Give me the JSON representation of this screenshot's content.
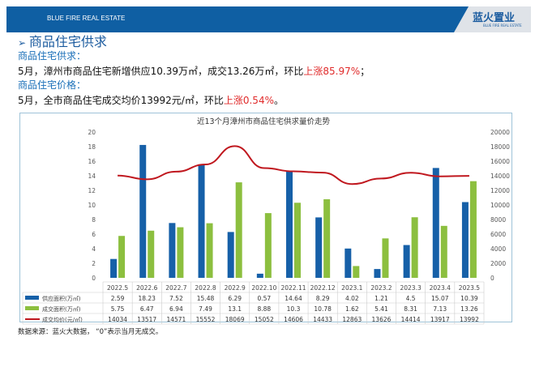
{
  "header": {
    "brand": "BLUE FIRE REAL ESTATE",
    "logo": "蓝火置业",
    "logo_sub": "BLUE FIRE REAL ESTATE"
  },
  "section_title": "商品住宅供求",
  "supply_label": "商品住宅供求：",
  "supply_text": "5月，漳州市商品住宅新增供应10.39万㎡，成交13.26万㎡，环比",
  "supply_change": "上涨85.97%",
  "supply_end": "；",
  "price_label": "商品住宅价格：",
  "price_text": "5月，全市商品住宅成交均价13992元/㎡，环比",
  "price_change": "上涨0.54%",
  "price_end": "。",
  "source": "数据来源：蓝火大数据， “0”表示当月无成交。",
  "colors": {
    "supply": "#1660a8",
    "deal": "#8cbf3f",
    "price": "#c0181f",
    "header": "#0f5fa3"
  },
  "chart_data": {
    "type": "bar+line",
    "title": "近13个月漳州市商品住宅供求量价走势",
    "categories": [
      "2022.5",
      "2022.6",
      "2022.7",
      "2022.8",
      "2022.9",
      "2022.10",
      "2022.11",
      "2022.12",
      "2023.1",
      "2023.2",
      "2023.3",
      "2023.4",
      "2023.5"
    ],
    "ylim_left": [
      0,
      20
    ],
    "yticks_left": [
      0,
      2,
      4,
      6,
      8,
      10,
      12,
      14,
      16,
      18,
      20
    ],
    "ylim_right": [
      0,
      20000
    ],
    "yticks_right": [
      0,
      2000,
      4000,
      6000,
      8000,
      10000,
      12000,
      14000,
      16000,
      18000,
      20000
    ],
    "grid": false,
    "legend": "table-below",
    "series": [
      {
        "name": "供应面积(万㎡)",
        "type": "bar",
        "axis": "left",
        "values": [
          2.59,
          18.23,
          7.52,
          15.48,
          6.29,
          0.57,
          14.64,
          8.29,
          4.02,
          1.21,
          4.5,
          15.07,
          10.39
        ]
      },
      {
        "name": "成交面积(万㎡)",
        "type": "bar",
        "axis": "left",
        "values": [
          5.75,
          6.47,
          6.94,
          7.49,
          13.1,
          8.88,
          10.3,
          10.78,
          1.62,
          5.41,
          8.31,
          7.13,
          13.26
        ]
      },
      {
        "name": "成交均价(元/㎡)",
        "type": "line",
        "axis": "right",
        "values": [
          14034,
          13517,
          14571,
          15552,
          18069,
          15052,
          14606,
          14433,
          12863,
          13626,
          14414,
          13917,
          13992
        ]
      }
    ]
  }
}
